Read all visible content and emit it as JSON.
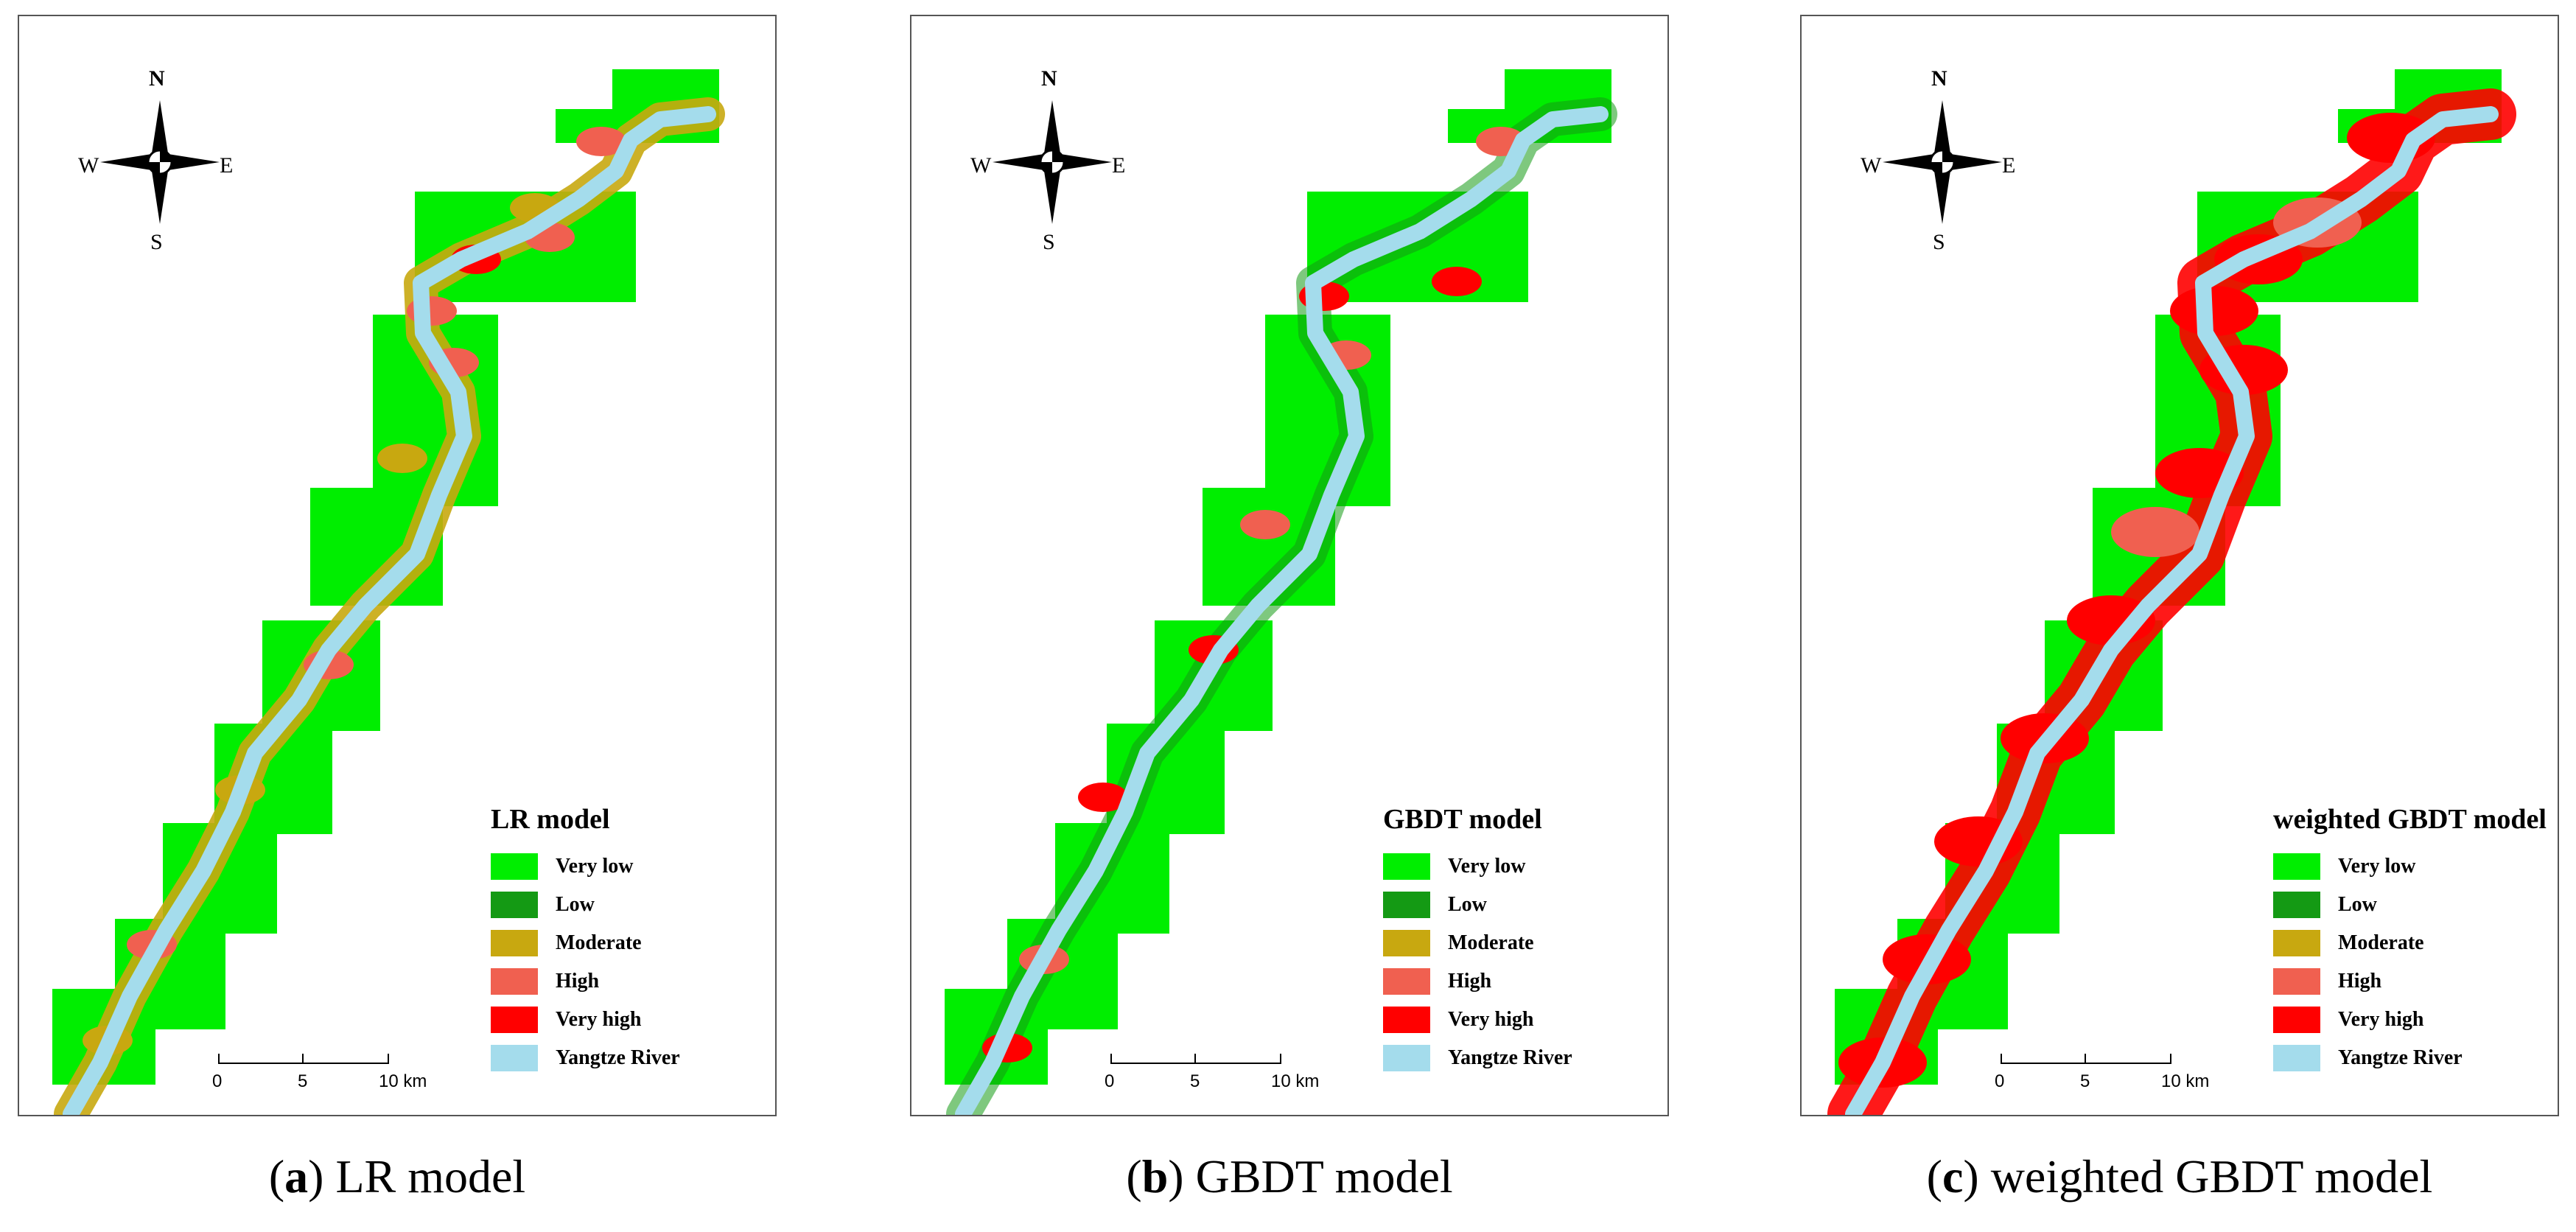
{
  "compass": {
    "n": "N",
    "s": "S",
    "w": "W",
    "e": "E"
  },
  "scale": {
    "t0": "0",
    "t1": "5",
    "t2": "10 km"
  },
  "legend_items": [
    {
      "label": "Very low",
      "color": "#00ee00"
    },
    {
      "label": "Low",
      "color": "#149a14"
    },
    {
      "label": "Moderate",
      "color": "#c8a810"
    },
    {
      "label": "High",
      "color": "#f06050"
    },
    {
      "label": "Very high",
      "color": "#ff0000"
    },
    {
      "label": "Yangtze River",
      "color": "#a4dcec"
    }
  ],
  "panels": [
    {
      "id": "a",
      "title": "LR model",
      "caption_letter": "a",
      "caption_text": "LR model"
    },
    {
      "id": "b",
      "title": "GBDT model",
      "caption_letter": "b",
      "caption_text": "GBDT model"
    },
    {
      "id": "c",
      "title": "weighted GBDT model",
      "caption_letter": "c",
      "caption_text": "weighted GBDT model"
    }
  ]
}
